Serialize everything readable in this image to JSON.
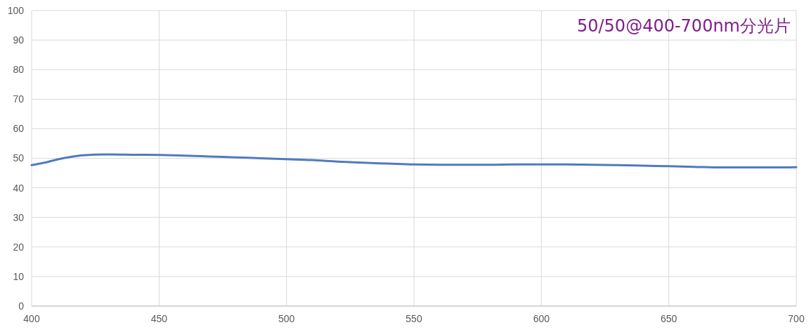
{
  "chart_data": {
    "type": "line",
    "title": "50/50@400-700nm分光片",
    "x": [
      400,
      405,
      410,
      415,
      420,
      430,
      440,
      450,
      460,
      470,
      480,
      490,
      500,
      510,
      520,
      530,
      540,
      550,
      560,
      570,
      580,
      590,
      600,
      610,
      620,
      630,
      640,
      650,
      660,
      670,
      680,
      690,
      700
    ],
    "series": [
      {
        "color": "#4f7bbf",
        "values": [
          47.7,
          48.5,
          49.6,
          50.4,
          51.0,
          51.3,
          51.2,
          51.1,
          50.9,
          50.6,
          50.3,
          50.0,
          49.7,
          49.4,
          48.9,
          48.5,
          48.2,
          47.9,
          47.8,
          47.8,
          47.8,
          47.9,
          47.9,
          47.9,
          47.8,
          47.7,
          47.5,
          47.3,
          47.1,
          46.9,
          46.9,
          46.9,
          47.0
        ]
      }
    ],
    "xlim": [
      400,
      700
    ],
    "xticks": [
      400,
      450,
      500,
      550,
      600,
      650,
      700
    ],
    "ylim": [
      0,
      100
    ],
    "yticks": [
      0,
      10,
      20,
      30,
      40,
      50,
      60,
      70,
      80,
      90,
      100
    ],
    "grid": true
  }
}
